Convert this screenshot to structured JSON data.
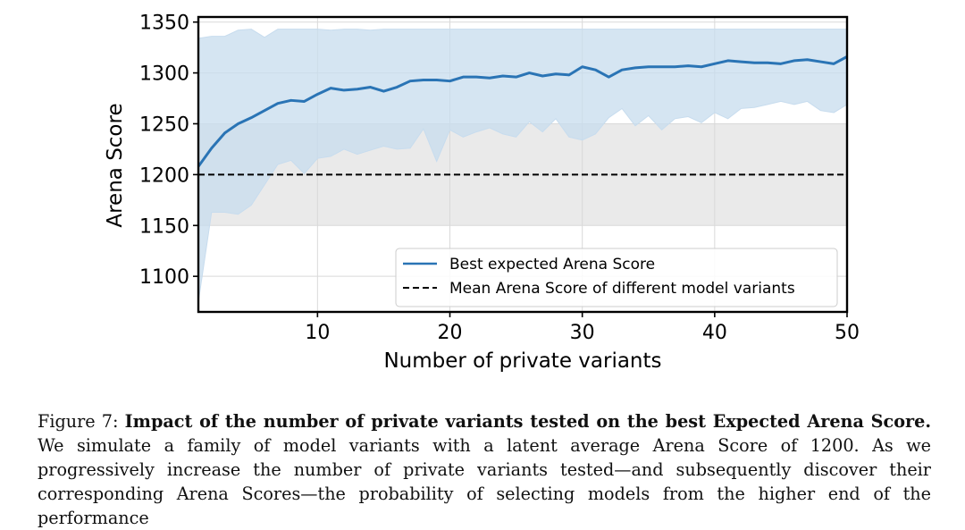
{
  "chart_data": {
    "type": "line",
    "xlabel": "Number of private variants",
    "ylabel": "Arena Score",
    "xlim": [
      1,
      50
    ],
    "ylim": [
      1065,
      1355
    ],
    "xticks": [
      10,
      20,
      30,
      40,
      50
    ],
    "yticks": [
      1100,
      1150,
      1200,
      1250,
      1300,
      1350
    ],
    "grid": true,
    "legend_position": "lower-right",
    "gray_band": [
      1150,
      1250
    ],
    "colors": {
      "line": "#2a74b5",
      "band": "#c7dcee",
      "gray": "#e6e6e6",
      "mean": "#000000"
    },
    "x": [
      1,
      2,
      3,
      4,
      5,
      6,
      7,
      8,
      9,
      10,
      11,
      12,
      13,
      14,
      15,
      16,
      17,
      18,
      19,
      20,
      21,
      22,
      23,
      24,
      25,
      26,
      27,
      28,
      29,
      30,
      31,
      32,
      33,
      34,
      35,
      36,
      37,
      38,
      39,
      40,
      41,
      42,
      43,
      44,
      45,
      46,
      47,
      48,
      49,
      50
    ],
    "series": [
      {
        "name": "Best expected Arena Score",
        "style": "solid",
        "values": [
          1208,
          1226,
          1241,
          1250,
          1256,
          1263,
          1270,
          1273,
          1272,
          1279,
          1285,
          1283,
          1284,
          1286,
          1282,
          1286,
          1292,
          1293,
          1293,
          1292,
          1296,
          1296,
          1295,
          1297,
          1296,
          1300,
          1297,
          1299,
          1298,
          1306,
          1303,
          1296,
          1303,
          1305,
          1306,
          1306,
          1306,
          1307,
          1306,
          1309,
          1312,
          1311,
          1310,
          1310,
          1309,
          1312,
          1313,
          1311,
          1309,
          1316
        ],
        "lower": [
          1075,
          1163,
          1163,
          1161,
          1170,
          1190,
          1210,
          1214,
          1201,
          1216,
          1218,
          1225,
          1220,
          1224,
          1228,
          1225,
          1226,
          1245,
          1213,
          1244,
          1237,
          1242,
          1246,
          1240,
          1237,
          1252,
          1242,
          1255,
          1237,
          1234,
          1240,
          1256,
          1265,
          1248,
          1258,
          1244,
          1255,
          1257,
          1251,
          1261,
          1255,
          1265,
          1266,
          1269,
          1272,
          1269,
          1272,
          1263,
          1261,
          1269
        ],
        "upper": [
          1334,
          1336,
          1336,
          1342,
          1343,
          1335,
          1343,
          1343,
          1343,
          1343,
          1342,
          1343,
          1343,
          1342,
          1343,
          1343,
          1343,
          1343,
          1343,
          1343,
          1343,
          1343,
          1343,
          1343,
          1343,
          1343,
          1343,
          1343,
          1343,
          1343,
          1343,
          1343,
          1343,
          1343,
          1343,
          1343,
          1343,
          1343,
          1343,
          1343,
          1343,
          1343,
          1343,
          1343,
          1343,
          1343,
          1343,
          1343,
          1343,
          1343
        ]
      },
      {
        "name": "Mean Arena Score of different model variants",
        "style": "dashed",
        "values": [
          1200,
          1200,
          1200,
          1200,
          1200,
          1200,
          1200,
          1200,
          1200,
          1200,
          1200,
          1200,
          1200,
          1200,
          1200,
          1200,
          1200,
          1200,
          1200,
          1200,
          1200,
          1200,
          1200,
          1200,
          1200,
          1200,
          1200,
          1200,
          1200,
          1200,
          1200,
          1200,
          1200,
          1200,
          1200,
          1200,
          1200,
          1200,
          1200,
          1200,
          1200,
          1200,
          1200,
          1200,
          1200,
          1200,
          1200,
          1200,
          1200,
          1200
        ]
      }
    ]
  },
  "caption": {
    "label": "Figure 7:",
    "bold": "Impact of the number of private variants tested on the best Expected Arena Score.",
    "text": "We simulate a family of model variants with a latent average Arena Score of 1200. As we progressively increase the number of private variants tested—and subsequently discover their corresponding Arena Scores—the probability of selecting models from the higher end of the performance"
  }
}
